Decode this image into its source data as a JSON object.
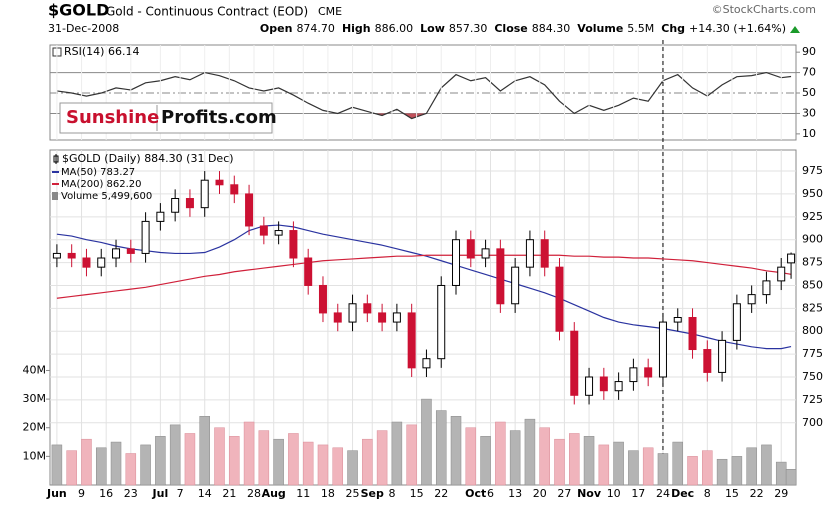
{
  "header": {
    "symbol": "$GOLD",
    "name": "Gold - Continuous Contract (EOD)",
    "exchange": "CME",
    "source": "©StockCharts.com",
    "date": "31-Dec-2008",
    "quote": [
      {
        "label": "Open",
        "value": "874.70"
      },
      {
        "label": "High",
        "value": "886.00"
      },
      {
        "label": "Low",
        "value": "857.30"
      },
      {
        "label": "Close",
        "value": "884.30"
      },
      {
        "label": "Volume",
        "value": "5.5M"
      },
      {
        "label": "Chg",
        "value": "+14.30 (+1.64%)"
      }
    ]
  },
  "logo": {
    "left": "Sunshine",
    "right": "Profits.com"
  },
  "chart_data": [
    {
      "type": "line",
      "title": "RSI(14) 66.14",
      "color": "#333333",
      "fill_color": "#c0505a",
      "x": [
        0,
        3,
        6,
        9,
        12,
        15,
        18,
        21,
        24,
        27,
        30,
        33,
        36,
        39,
        42,
        45,
        48,
        51,
        54,
        57,
        60,
        63,
        66,
        69,
        72,
        75,
        78,
        81,
        84,
        87,
        90,
        93,
        96,
        99,
        102,
        105,
        108,
        111,
        114,
        117,
        120,
        123,
        126,
        129,
        132,
        135,
        138,
        141,
        144,
        147,
        149
      ],
      "values": [
        52,
        50,
        47,
        50,
        55,
        53,
        60,
        62,
        66,
        63,
        70,
        67,
        62,
        55,
        52,
        55,
        48,
        40,
        33,
        30,
        36,
        32,
        28,
        34,
        25,
        30,
        55,
        68,
        62,
        65,
        52,
        62,
        66,
        58,
        42,
        30,
        38,
        33,
        38,
        45,
        42,
        62,
        68,
        55,
        47,
        58,
        66,
        67,
        70,
        65,
        66.14
      ],
      "xlim": [
        -1.4,
        150
      ],
      "ylim": [
        4,
        97
      ],
      "yticks": [
        10,
        30,
        50,
        70,
        90
      ],
      "levels": [
        30,
        50,
        70
      ]
    },
    {
      "type": "candlestick",
      "title": "$GOLD (Daily) 884.30 (31 Dec)",
      "up_color": "#000000",
      "down_color": "#cc1133",
      "grid": true,
      "x": [
        0,
        3,
        6,
        9,
        12,
        15,
        18,
        21,
        24,
        27,
        30,
        33,
        36,
        39,
        42,
        45,
        48,
        51,
        54,
        57,
        60,
        63,
        66,
        69,
        72,
        75,
        78,
        81,
        84,
        87,
        90,
        93,
        96,
        99,
        102,
        105,
        108,
        111,
        114,
        117,
        120,
        123,
        126,
        129,
        132,
        135,
        138,
        141,
        144,
        147,
        149
      ],
      "open": [
        880,
        885,
        880,
        870,
        880,
        890,
        885,
        920,
        930,
        945,
        935,
        965,
        960,
        950,
        915,
        905,
        910,
        880,
        850,
        820,
        810,
        830,
        820,
        810,
        820,
        760,
        770,
        850,
        900,
        880,
        890,
        830,
        870,
        900,
        870,
        800,
        730,
        750,
        735,
        745,
        760,
        750,
        810,
        815,
        780,
        755,
        790,
        830,
        840,
        855,
        874.7
      ],
      "high": [
        895,
        895,
        890,
        890,
        900,
        900,
        930,
        940,
        955,
        955,
        975,
        975,
        970,
        960,
        925,
        920,
        920,
        890,
        860,
        830,
        840,
        840,
        830,
        830,
        830,
        780,
        860,
        910,
        910,
        900,
        900,
        880,
        910,
        910,
        880,
        810,
        760,
        760,
        755,
        770,
        770,
        820,
        825,
        825,
        790,
        800,
        840,
        850,
        865,
        880,
        886
      ],
      "low": [
        870,
        870,
        860,
        860,
        870,
        875,
        875,
        910,
        920,
        925,
        925,
        950,
        940,
        905,
        895,
        895,
        870,
        840,
        810,
        800,
        800,
        810,
        800,
        800,
        750,
        750,
        760,
        840,
        870,
        870,
        820,
        820,
        860,
        860,
        790,
        720,
        720,
        725,
        725,
        735,
        740,
        740,
        800,
        770,
        745,
        745,
        780,
        820,
        830,
        845,
        857.3
      ],
      "close": [
        885,
        880,
        870,
        880,
        890,
        885,
        920,
        930,
        945,
        935,
        965,
        960,
        950,
        915,
        905,
        910,
        880,
        850,
        820,
        810,
        830,
        820,
        810,
        820,
        760,
        770,
        850,
        900,
        880,
        890,
        830,
        870,
        900,
        870,
        800,
        730,
        750,
        735,
        745,
        760,
        750,
        810,
        815,
        780,
        755,
        790,
        830,
        840,
        855,
        870,
        884.3
      ],
      "volume": {
        "name": "Volume 5,499,600",
        "up_color": "#b4b4b4",
        "down_color": "#f0b4bc",
        "values": [
          14000000,
          12000000,
          16000000,
          13000000,
          15000000,
          11000000,
          14000000,
          17000000,
          21000000,
          18000000,
          24000000,
          20000000,
          17000000,
          22000000,
          19000000,
          16000000,
          18000000,
          15000000,
          14000000,
          13000000,
          12000000,
          16000000,
          19000000,
          22000000,
          21000000,
          30000000,
          26000000,
          24000000,
          20000000,
          17000000,
          22000000,
          19000000,
          23000000,
          20000000,
          16000000,
          18000000,
          17000000,
          14000000,
          15000000,
          12000000,
          13000000,
          11000000,
          15000000,
          10000000,
          12000000,
          9000000,
          10000000,
          13000000,
          14000000,
          8000000,
          5499600
        ]
      },
      "ma": [
        {
          "name": "MA(50) 783.27",
          "color": "#2a33a0",
          "values": [
            906,
            904,
            900,
            897,
            893,
            890,
            888,
            886,
            885,
            885,
            886,
            892,
            900,
            910,
            915,
            916,
            914,
            910,
            906,
            903,
            900,
            897,
            894,
            890,
            886,
            882,
            877,
            872,
            867,
            862,
            857,
            852,
            847,
            842,
            836,
            829,
            822,
            815,
            810,
            807,
            805,
            803,
            800,
            797,
            793,
            789,
            786,
            783,
            781,
            781,
            783.27
          ]
        },
        {
          "name": "MA(200) 862.20",
          "color": "#d0203a",
          "values": [
            836,
            838,
            840,
            842,
            844,
            846,
            848,
            851,
            854,
            857,
            860,
            862,
            865,
            867,
            869,
            871,
            873,
            875,
            877,
            878,
            879,
            880,
            881,
            882,
            882,
            883,
            883,
            883,
            883,
            883,
            883,
            883,
            883,
            883,
            883,
            882,
            882,
            881,
            881,
            880,
            880,
            879,
            878,
            877,
            875,
            873,
            871,
            869,
            866,
            864,
            862.2
          ]
        }
      ],
      "xlim": [
        -1.4,
        150
      ],
      "ylim": [
        632,
        998
      ],
      "yticks": [
        700,
        725,
        750,
        775,
        800,
        825,
        850,
        875,
        900,
        925,
        950,
        975
      ],
      "y2lim": [
        0,
        117000000
      ],
      "y2ticks": [
        {
          "value": 10000000,
          "label": "10M"
        },
        {
          "value": 20000000,
          "label": "20M"
        },
        {
          "value": 30000000,
          "label": "30M"
        },
        {
          "value": 40000000,
          "label": "40M"
        }
      ],
      "vline_x": 123,
      "xticks": [
        {
          "value": 0,
          "label": "Jun"
        },
        {
          "value": 5,
          "label": "9"
        },
        {
          "value": 10,
          "label": "16"
        },
        {
          "value": 15,
          "label": "23"
        },
        {
          "value": 21,
          "label": "Jul"
        },
        {
          "value": 25,
          "label": "7"
        },
        {
          "value": 30,
          "label": "14"
        },
        {
          "value": 35,
          "label": "21"
        },
        {
          "value": 40,
          "label": "28"
        },
        {
          "value": 44,
          "label": "Aug"
        },
        {
          "value": 50,
          "label": "11"
        },
        {
          "value": 55,
          "label": "18"
        },
        {
          "value": 60,
          "label": "25"
        },
        {
          "value": 64,
          "label": "Sep"
        },
        {
          "value": 68,
          "label": "8"
        },
        {
          "value": 73,
          "label": "15"
        },
        {
          "value": 78,
          "label": "22"
        },
        {
          "value": 85,
          "label": "Oct"
        },
        {
          "value": 88,
          "label": "6"
        },
        {
          "value": 93,
          "label": "13"
        },
        {
          "value": 98,
          "label": "20"
        },
        {
          "value": 103,
          "label": "27"
        },
        {
          "value": 108,
          "label": "Nov"
        },
        {
          "value": 113,
          "label": "10"
        },
        {
          "value": 118,
          "label": "17"
        },
        {
          "value": 123,
          "label": "24"
        },
        {
          "value": 127,
          "label": "Dec"
        },
        {
          "value": 132,
          "label": "8"
        },
        {
          "value": 137,
          "label": "15"
        },
        {
          "value": 142,
          "label": "22"
        },
        {
          "value": 147,
          "label": "29"
        }
      ]
    }
  ]
}
